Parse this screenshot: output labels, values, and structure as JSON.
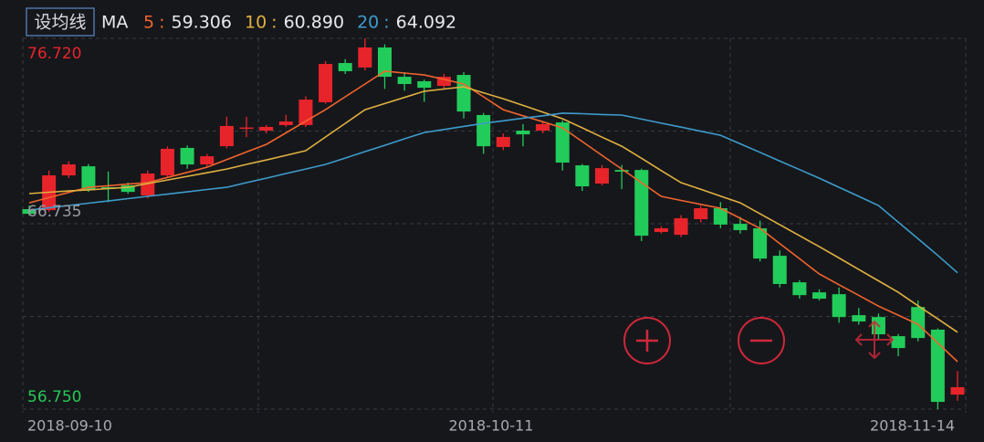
{
  "header": {
    "button": "设均线",
    "ma_label": "MA",
    "separator": ":"
  },
  "chart_data": {
    "type": "candlestick",
    "categories": [
      "2018-09-10",
      null,
      null,
      null,
      null,
      null,
      null,
      null,
      null,
      null,
      null,
      null,
      null,
      null,
      null,
      null,
      null,
      null,
      null,
      null,
      null,
      null,
      null,
      "2018-10-11",
      null,
      null,
      null,
      null,
      null,
      null,
      null,
      null,
      null,
      null,
      null,
      null,
      null,
      null,
      null,
      null,
      null,
      null,
      null,
      null,
      null,
      null,
      null,
      "2018-11-14"
    ],
    "ylim": [
      56.75,
      76.72
    ],
    "yticks": [
      {
        "value": 56.75,
        "label": "56.750"
      },
      {
        "value": 61.7425,
        "label": null
      },
      {
        "value": 66.735,
        "label": "66.735"
      },
      {
        "value": 71.7275,
        "label": null
      },
      {
        "value": 76.72,
        "label": "76.720"
      }
    ],
    "ytick_colors": [
      "#27c957",
      null,
      "#9a9ca3",
      null,
      "#e8242b"
    ],
    "grid": true,
    "up_color": "#e8242b",
    "down_color": "#22cc5a",
    "open": [
      67.52,
      67.47,
      69.34,
      69.83,
      68.7,
      68.8,
      68.26,
      69.34,
      70.82,
      69.93,
      70.91,
      71.9,
      71.75,
      72.05,
      72.05,
      73.28,
      75.39,
      75.15,
      76.23,
      74.65,
      74.41,
      74.16,
      74.75,
      72.59,
      70.87,
      71.75,
      71.75,
      72.19,
      69.88,
      68.9,
      69.63,
      69.63,
      66.29,
      66.14,
      66.98,
      67.57,
      66.73,
      66.49,
      65.01,
      63.58,
      63.04,
      62.94,
      61.81,
      61.71,
      60.68,
      62.25,
      61.03,
      57.53
    ],
    "high": [
      67.72,
      69.6,
      70.1,
      69.95,
      69.55,
      68.95,
      69.6,
      70.9,
      70.95,
      70.5,
      72.5,
      72.5,
      72.05,
      72.6,
      73.6,
      75.5,
      75.6,
      76.72,
      76.4,
      74.9,
      74.5,
      74.8,
      74.9,
      72.7,
      71.6,
      72.1,
      72.2,
      72.3,
      69.95,
      69.9,
      69.9,
      69.7,
      66.6,
      67.2,
      67.7,
      67.9,
      67.1,
      66.9,
      65.3,
      63.7,
      63.2,
      63.3,
      62.2,
      61.9,
      60.8,
      62.6,
      61.1,
      58.8
    ],
    "low": [
      67.17,
      67.37,
      69.2,
      68.45,
      67.9,
      68.35,
      68.1,
      69.25,
      69.7,
      69.8,
      70.8,
      71.4,
      71.6,
      71.95,
      71.95,
      73.2,
      74.8,
      75.0,
      74.0,
      73.9,
      73.3,
      74.0,
      72.4,
      70.5,
      70.7,
      70.9,
      71.6,
      69.6,
      68.5,
      68.8,
      68.6,
      65.8,
      66.2,
      66.0,
      66.8,
      66.5,
      66.2,
      64.7,
      63.3,
      62.7,
      62.6,
      61.4,
      61.3,
      60.5,
      59.6,
      60.4,
      56.75,
      57.2
    ],
    "close": [
      67.27,
      69.34,
      69.93,
      68.55,
      68.65,
      68.45,
      69.44,
      70.77,
      69.93,
      70.37,
      72.0,
      71.92,
      71.95,
      72.24,
      73.42,
      75.34,
      74.95,
      76.23,
      74.65,
      74.26,
      74.06,
      74.65,
      72.78,
      70.91,
      71.41,
      71.55,
      72.1,
      70.03,
      68.75,
      69.73,
      69.54,
      66.09,
      66.49,
      67.03,
      67.57,
      66.69,
      66.39,
      64.86,
      63.49,
      62.89,
      62.7,
      61.71,
      61.47,
      60.78,
      60.04,
      60.58,
      57.14,
      57.93
    ],
    "series": [
      {
        "name": "5",
        "color": "#f0642d",
        "current": {
          "value": 59.306,
          "label": "59.306"
        },
        "values": [
          67.86,
          68.14,
          68.42,
          68.7,
          68.78,
          68.87,
          68.95,
          69.23,
          69.5,
          69.78,
          70.19,
          70.6,
          71.01,
          71.63,
          72.26,
          72.88,
          73.57,
          74.26,
          74.95,
          74.85,
          74.75,
          74.51,
          74.26,
          73.57,
          72.88,
          72.55,
          72.23,
          71.9,
          71.16,
          70.42,
          69.68,
          68.95,
          68.21,
          67.99,
          67.78,
          67.57,
          67.03,
          66.49,
          65.67,
          64.85,
          64.03,
          63.45,
          62.88,
          62.3,
          61.81,
          61.32,
          60.31,
          59.306
        ]
      },
      {
        "name": "10",
        "color": "#e0b040",
        "current": {
          "value": 60.89,
          "label": "60.890"
        },
        "values": [
          68.36,
          68.43,
          68.5,
          68.56,
          68.63,
          68.7,
          68.9,
          69.09,
          69.29,
          69.48,
          69.68,
          69.93,
          70.17,
          70.42,
          70.67,
          71.41,
          72.14,
          72.88,
          73.21,
          73.54,
          73.87,
          73.99,
          74.11,
          73.79,
          73.47,
          73.11,
          72.75,
          72.39,
          71.9,
          71.4,
          70.91,
          70.26,
          69.6,
          68.95,
          68.59,
          68.22,
          67.86,
          67.27,
          66.68,
          66.09,
          65.5,
          64.89,
          64.27,
          63.66,
          63.04,
          62.32,
          61.61,
          60.89
        ]
      },
      {
        "name": "20",
        "color": "#3d9ccc",
        "current": {
          "value": 64.092,
          "label": "64.092"
        },
        "values": [
          67.47,
          67.59,
          67.72,
          67.84,
          67.96,
          68.09,
          68.21,
          68.33,
          68.45,
          68.58,
          68.7,
          68.95,
          69.19,
          69.44,
          69.68,
          69.93,
          70.27,
          70.62,
          70.96,
          71.31,
          71.65,
          71.81,
          71.98,
          72.14,
          72.28,
          72.42,
          72.55,
          72.69,
          72.66,
          72.62,
          72.59,
          72.37,
          72.15,
          71.94,
          71.72,
          71.5,
          71.04,
          70.58,
          70.11,
          69.65,
          69.19,
          68.7,
          68.21,
          67.72,
          66.82,
          65.93,
          65.03,
          64.092
        ]
      }
    ]
  }
}
